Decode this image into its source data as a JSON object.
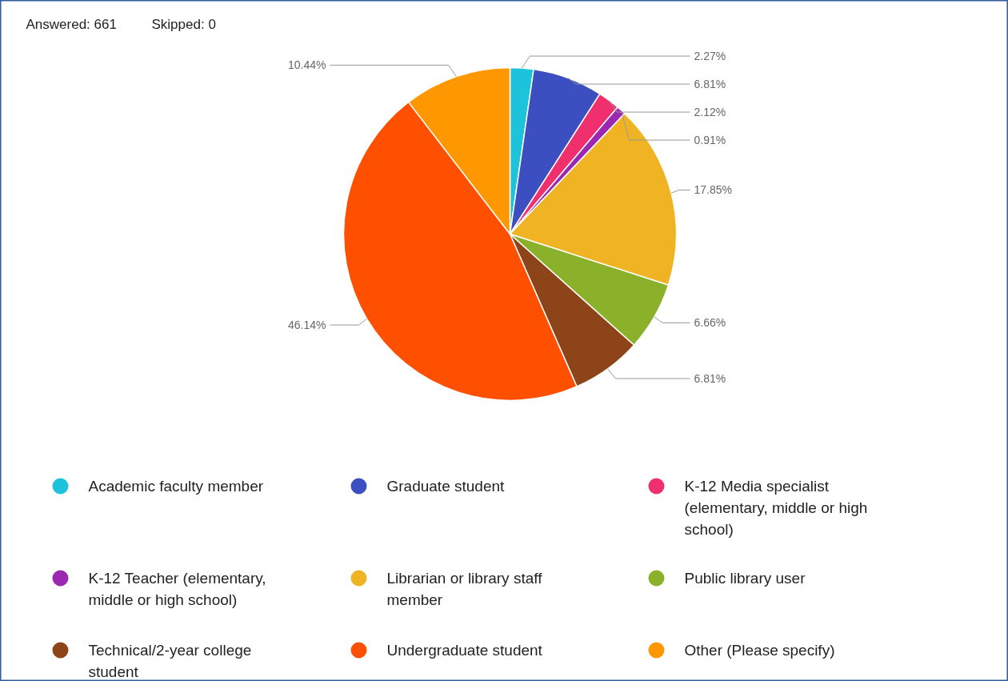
{
  "chart_data": {
    "type": "pie",
    "annotations": [
      "Answered: 661",
      "Skipped: 0"
    ],
    "categories": [
      "Academic faculty member",
      "Graduate student",
      "K-12 Media specialist (elementary, middle or high school)",
      "K-12 Teacher (elementary, middle or high school)",
      "Librarian or library staff member",
      "Public library user",
      "Technical/2-year college student",
      "Undergraduate student",
      "Other (Please specify)"
    ],
    "values": [
      2.27,
      6.81,
      2.12,
      0.91,
      17.85,
      6.66,
      6.81,
      46.14,
      10.44
    ],
    "colors": [
      "#1cc3da",
      "#3b4fc1",
      "#ef2f6e",
      "#9c27b0",
      "#f0b323",
      "#8bb12a",
      "#8e4419",
      "#ff4f00",
      "#ff9800"
    ],
    "value_labels": [
      "2.27%",
      "6.81%",
      "2.12%",
      "0.91%",
      "17.85%",
      "6.66%",
      "6.81%",
      "46.14%",
      "10.44%"
    ],
    "legend": "bottom"
  }
}
